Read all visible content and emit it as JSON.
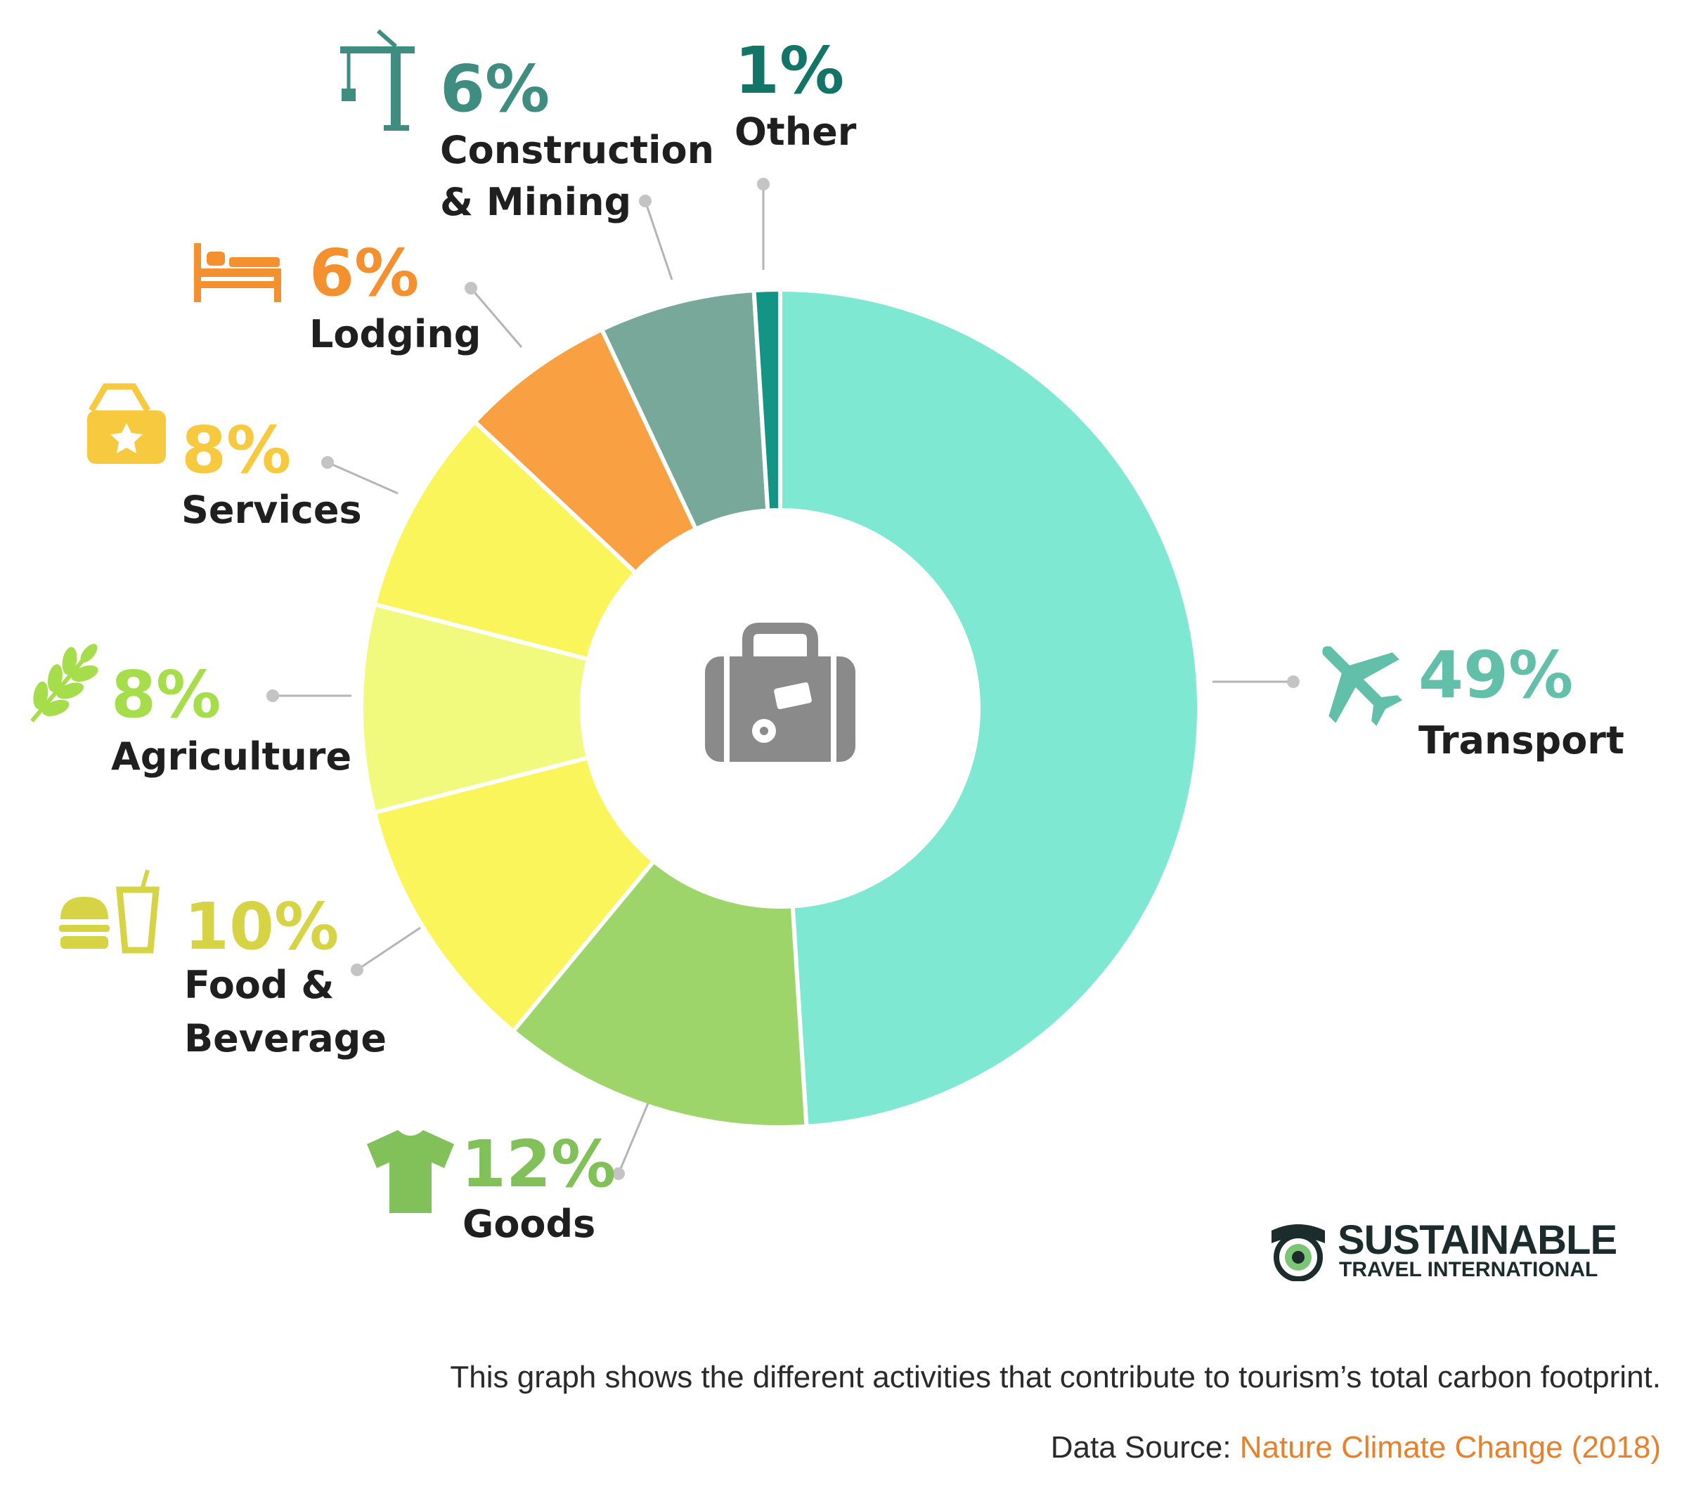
{
  "chart_data": {
    "type": "pie",
    "variant": "donut",
    "title": "",
    "categories": [
      "Transport",
      "Goods",
      "Food & Beverage",
      "Agriculture",
      "Services",
      "Lodging",
      "Construction & Mining",
      "Other"
    ],
    "values": [
      49,
      12,
      10,
      8,
      8,
      6,
      6,
      1
    ],
    "value_labels": [
      "49%",
      "12%",
      "10%",
      "8%",
      "8%",
      "6%",
      "6%",
      "1%"
    ],
    "label_lines": [
      [
        "Transport"
      ],
      [
        "Goods"
      ],
      [
        "Food &",
        "Beverage"
      ],
      [
        "Agriculture"
      ],
      [
        "Services"
      ],
      [
        "Lodging"
      ],
      [
        "Construction",
        "& Mining"
      ],
      [
        "Other"
      ]
    ],
    "icons": [
      "airplane-icon",
      "tshirt-icon",
      "burger-drink-icon",
      "wheat-icon",
      "ticket-icon",
      "bed-icon",
      "crane-icon",
      null
    ],
    "center_icon": "suitcase-icon",
    "colors": {
      "slices": [
        "#7ee8d3",
        "#9ed56b",
        "#fbf55c",
        "#f2fa7e",
        "#fbf55c",
        "#f9a142",
        "#78a89a",
        "#139484"
      ],
      "labels": [
        "#62bfaa",
        "#82c15a",
        "#d6d445",
        "#a6dd4a",
        "#f7c93f",
        "#f5902f",
        "#3e8d80",
        "#137468"
      ]
    },
    "legend": "none"
  },
  "logo": {
    "title": "SUSTAINABLE",
    "subtitle": "TRAVEL INTERNATIONAL"
  },
  "caption": "This graph shows the different activities that contribute to tourism’s total carbon footprint.",
  "source": {
    "prefix": "Data Source: ",
    "link": "Nature Climate Change (2018)"
  }
}
